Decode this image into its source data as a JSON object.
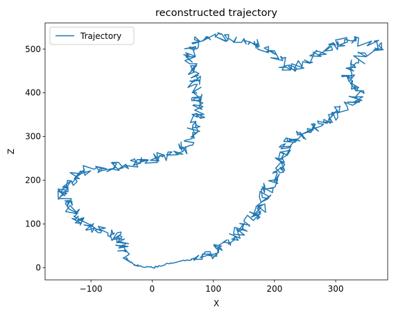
{
  "chart_data": {
    "type": "line",
    "title": "reconstructed trajectory",
    "xlabel": "X",
    "ylabel": "Z",
    "xlim": [
      -175,
      385
    ],
    "ylim": [
      -28,
      560
    ],
    "xticks": [
      -100,
      0,
      100,
      200,
      300
    ],
    "yticks": [
      0,
      100,
      200,
      300,
      400,
      500
    ],
    "grid": false,
    "legend": {
      "position": "upper-left",
      "entries": [
        "Trajectory"
      ]
    },
    "series": [
      {
        "name": "Trajectory",
        "color": "#1f77b4",
        "waypoints": [
          [
            0,
            0
          ],
          [
            -20,
            3
          ],
          [
            -30,
            7
          ],
          [
            -40,
            18
          ],
          [
            -45,
            35
          ],
          [
            -50,
            52
          ],
          [
            -48,
            65
          ],
          [
            -65,
            75
          ],
          [
            -85,
            85
          ],
          [
            -100,
            95
          ],
          [
            -115,
            105
          ],
          [
            -125,
            115
          ],
          [
            -133,
            135
          ],
          [
            -140,
            150
          ],
          [
            -150,
            172
          ],
          [
            -135,
            190
          ],
          [
            -125,
            205
          ],
          [
            -115,
            220
          ],
          [
            -95,
            225
          ],
          [
            -70,
            230
          ],
          [
            -45,
            235
          ],
          [
            -20,
            242
          ],
          [
            0,
            250
          ],
          [
            20,
            255
          ],
          [
            40,
            260
          ],
          [
            55,
            280
          ],
          [
            62,
            300
          ],
          [
            68,
            320
          ],
          [
            72,
            340
          ],
          [
            78,
            350
          ],
          [
            75,
            370
          ],
          [
            72,
            390
          ],
          [
            70,
            410
          ],
          [
            68,
            430
          ],
          [
            65,
            450
          ],
          [
            60,
            480
          ],
          [
            62,
            500
          ],
          [
            70,
            520
          ],
          [
            90,
            530
          ],
          [
            120,
            528
          ],
          [
            150,
            520
          ],
          [
            175,
            510
          ],
          [
            195,
            495
          ],
          [
            215,
            470
          ],
          [
            230,
            455
          ],
          [
            250,
            470
          ],
          [
            270,
            490
          ],
          [
            290,
            505
          ],
          [
            310,
            515
          ],
          [
            330,
            525
          ],
          [
            360,
            510
          ],
          [
            370,
            505
          ],
          [
            340,
            480
          ],
          [
            330,
            460
          ],
          [
            320,
            440
          ],
          [
            325,
            420
          ],
          [
            340,
            400
          ],
          [
            330,
            380
          ],
          [
            310,
            360
          ],
          [
            295,
            345
          ],
          [
            275,
            330
          ],
          [
            260,
            320
          ],
          [
            245,
            305
          ],
          [
            230,
            295
          ],
          [
            220,
            280
          ],
          [
            215,
            260
          ],
          [
            210,
            240
          ],
          [
            205,
            220
          ],
          [
            198,
            200
          ],
          [
            190,
            180
          ],
          [
            185,
            160
          ],
          [
            180,
            140
          ],
          [
            170,
            125
          ],
          [
            160,
            110
          ],
          [
            150,
            95
          ],
          [
            140,
            80
          ],
          [
            125,
            65
          ],
          [
            110,
            50
          ],
          [
            100,
            35
          ],
          [
            85,
            25
          ],
          [
            60,
            18
          ],
          [
            30,
            10
          ],
          [
            10,
            3
          ],
          [
            0,
            0
          ]
        ]
      }
    ]
  }
}
